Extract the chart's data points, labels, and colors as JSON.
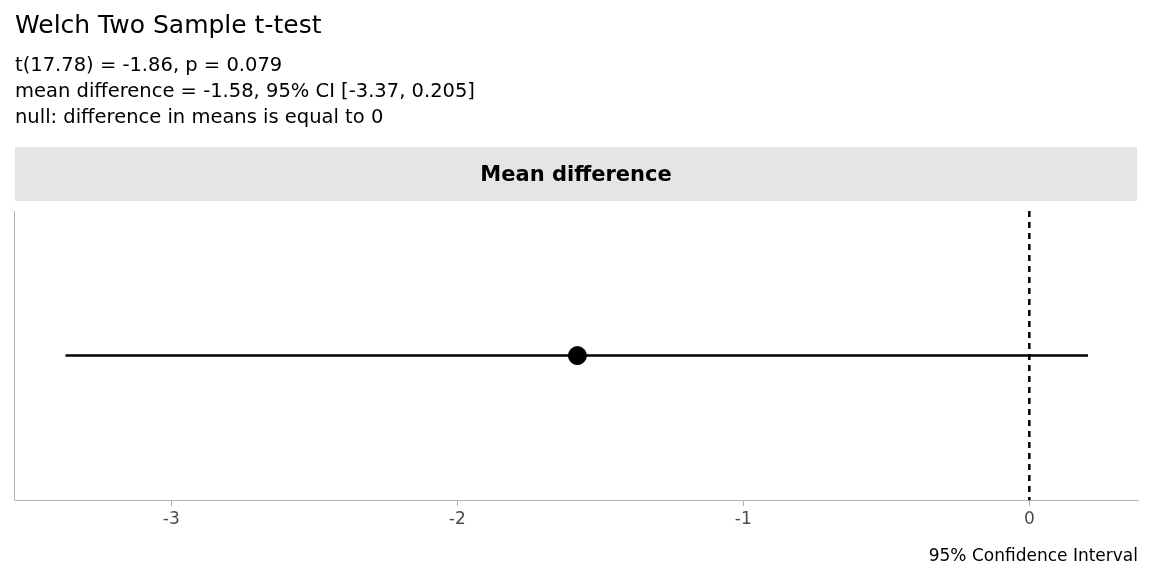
{
  "chart_data": {
    "type": "scatter",
    "title": "Welch Two Sample t-test",
    "subtitle": "t(17.78) = -1.86, p = 0.079\nmean difference = -1.58, 95% CI [-3.37, 0.205]\nnull: difference in means is equal to 0",
    "annotations": [
      "Mean difference"
    ],
    "xlabel": "95% Confidence Interval",
    "orientation": "horizontal",
    "categories": [
      null
    ],
    "series": [
      {
        "color": "#000000",
        "values": [
          -1.58
        ],
        "errors": [
          [
            -3.37,
            0.205
          ]
        ]
      }
    ],
    "xlim": [
      -3.55,
      0.38
    ],
    "xticks": [
      -3,
      -2,
      -1,
      0
    ],
    "tick_labels": "x",
    "grid": false,
    "legend": false,
    "marker": "circle",
    "ref_lines": [
      {
        "axis": "x",
        "value": 0,
        "color": "#000000",
        "line_style": "dashed"
      }
    ]
  }
}
